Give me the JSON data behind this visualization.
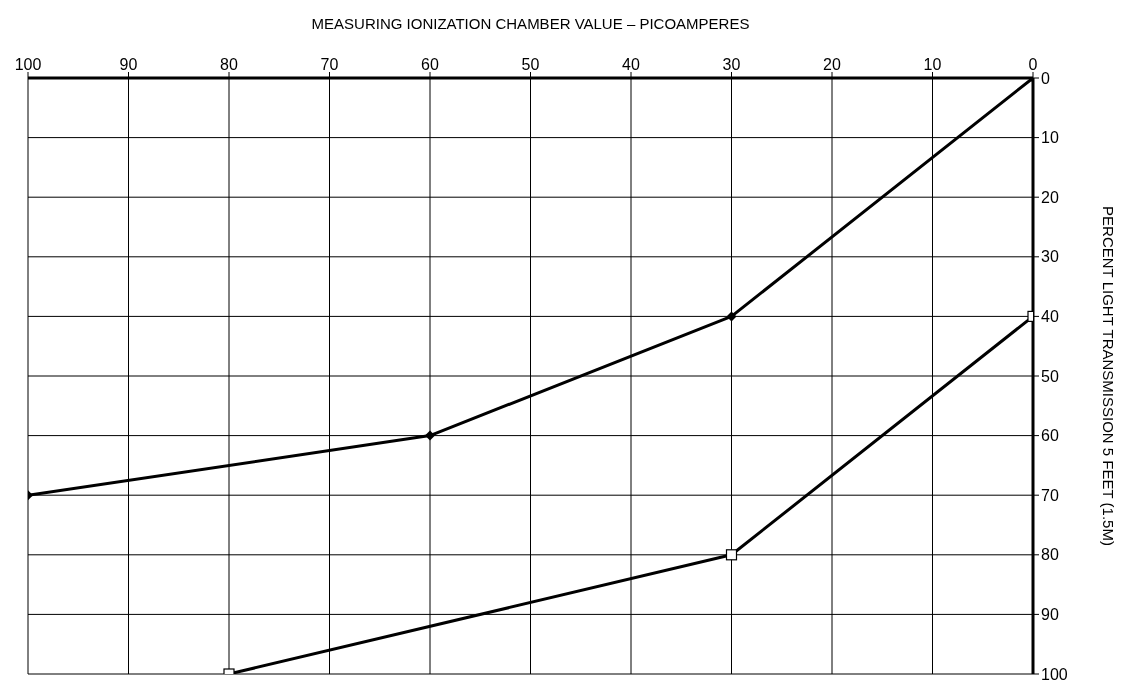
{
  "chart_data": {
    "type": "line",
    "xlabel": "MEASURING IONIZATION CHAMBER VALUE – PICOAMPERES",
    "ylabel": "PERCENT LIGHT TRANSMISSION 5 FEET (1.5M)",
    "xlim": [
      100,
      0
    ],
    "xticks": [
      100,
      90,
      80,
      70,
      60,
      50,
      40,
      30,
      20,
      10,
      0
    ],
    "ylim": [
      100,
      0
    ],
    "yticks": [
      0,
      10,
      20,
      30,
      40,
      50,
      60,
      70,
      80,
      90,
      100
    ],
    "grid": true,
    "legend": false,
    "line_style": "solid",
    "series": [
      {
        "color": "#000000",
        "marker": "diamond",
        "x": [
          0,
          30,
          60,
          100
        ],
        "values": [
          0,
          40,
          60,
          70
        ]
      },
      {
        "color": "#000000",
        "marker": "square",
        "x": [
          0,
          30,
          80
        ],
        "values": [
          40,
          80,
          100
        ]
      }
    ]
  }
}
